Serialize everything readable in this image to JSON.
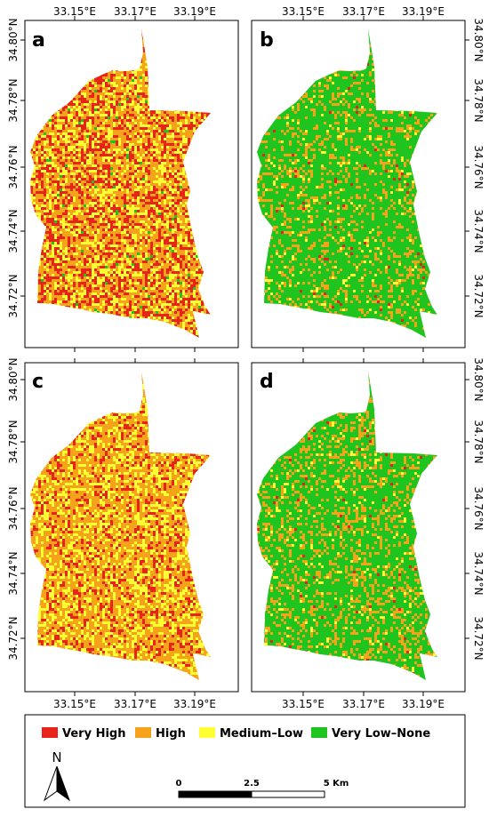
{
  "figure": {
    "longitude_ticks": [
      "33.15°E",
      "33.17°E",
      "33.19°E"
    ],
    "latitude_ticks": [
      "34.80°N",
      "34.78°N",
      "34.76°N",
      "34.74°N",
      "34.72°N"
    ],
    "panels": [
      {
        "letter": "a",
        "dominant_class": "High",
        "mix": {
          "very_high": 0.3,
          "high": 0.4,
          "medium_low": 0.28,
          "very_low_none": 0.02
        }
      },
      {
        "letter": "b",
        "dominant_class": "Very Low–None",
        "mix": {
          "very_high": 0.01,
          "high": 0.2,
          "medium_low": 0.04,
          "very_low_none": 0.75
        }
      },
      {
        "letter": "c",
        "dominant_class": "High",
        "mix": {
          "very_high": 0.18,
          "high": 0.52,
          "medium_low": 0.3,
          "very_low_none": 0.0
        }
      },
      {
        "letter": "d",
        "dominant_class": "Very Low–None",
        "mix": {
          "very_high": 0.01,
          "high": 0.24,
          "medium_low": 0.05,
          "very_low_none": 0.7
        }
      }
    ]
  },
  "legend": {
    "items": [
      {
        "label": "Very High",
        "color": "#e8231a"
      },
      {
        "label": "High",
        "color": "#f5a31a"
      },
      {
        "label": "Medium–Low",
        "color": "#ffff33"
      },
      {
        "label": "Very Low–None",
        "color": "#1fc41f"
      }
    ]
  },
  "north_arrow": {
    "label": "N"
  },
  "scale_bar": {
    "labels": [
      "0",
      "2.5",
      "5 Km"
    ]
  }
}
